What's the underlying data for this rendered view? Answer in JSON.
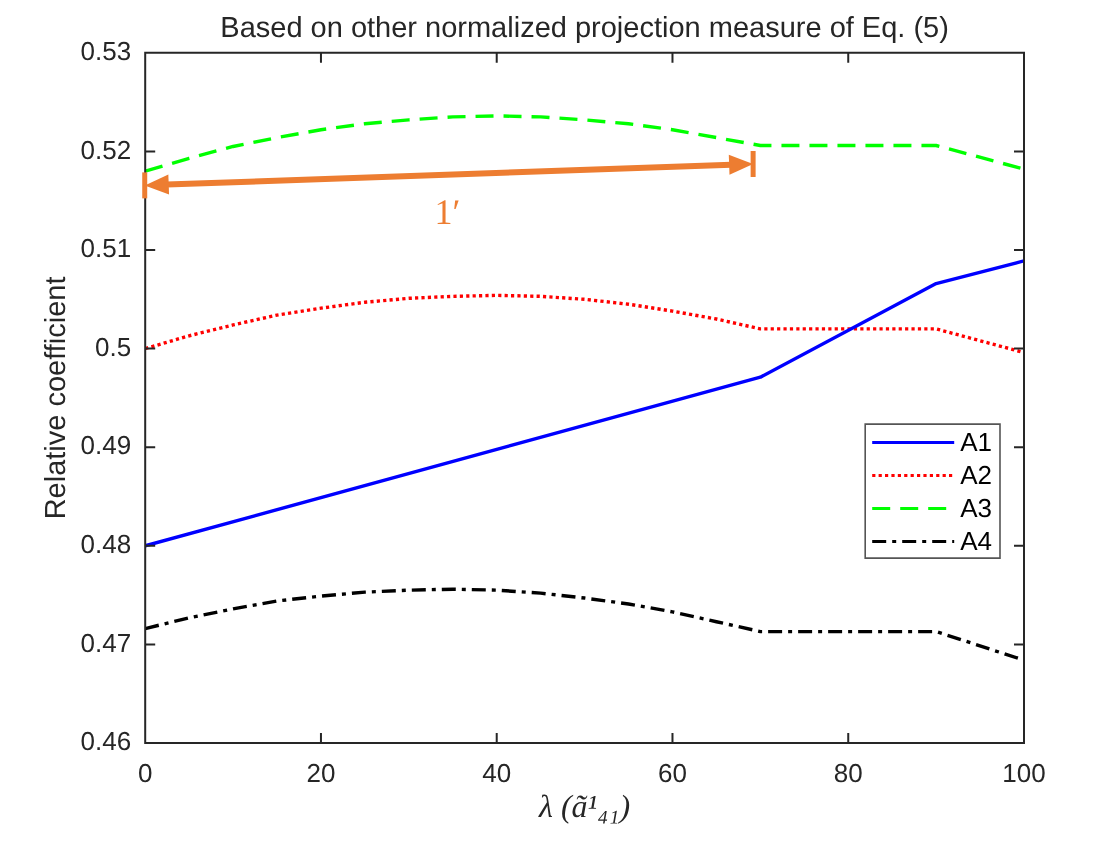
{
  "chart_data": {
    "type": "line",
    "title": "Based on other normalized projection measure of Eq. (5)",
    "xlabel": "λ (ã¹₄₁)",
    "ylabel": "Relative coefficient",
    "x": [
      0,
      5,
      10,
      15,
      20,
      25,
      30,
      35,
      40,
      45,
      50,
      55,
      60,
      65,
      70,
      90,
      100
    ],
    "xlim": [
      0,
      100
    ],
    "xticks": [
      0,
      20,
      40,
      60,
      80,
      100
    ],
    "ylim": [
      0.46,
      0.53
    ],
    "yticks": [
      0.46,
      0.47,
      0.48,
      0.49,
      0.5,
      0.51,
      0.52,
      0.53
    ],
    "grid": false,
    "legend": "right",
    "series": [
      {
        "name": "A1",
        "color": "#0000ff",
        "line_style": "solid",
        "x": [
          0,
          70,
          90,
          100
        ],
        "values": [
          0.48,
          0.4971,
          0.5066,
          0.5089
        ]
      },
      {
        "name": "A2",
        "color": "#ff0000",
        "line_style": "dotted",
        "values": [
          0.5,
          0.5013,
          0.5024,
          0.5034,
          0.5041,
          0.5047,
          0.5051,
          0.5053,
          0.5054,
          0.5053,
          0.505,
          0.5045,
          0.5038,
          0.503,
          0.502,
          0.502,
          0.4996
        ]
      },
      {
        "name": "A3",
        "color": "#00ff00",
        "line_style": "dashed",
        "values": [
          0.518,
          0.5193,
          0.5205,
          0.5214,
          0.5222,
          0.5228,
          0.5232,
          0.5235,
          0.5236,
          0.5235,
          0.5232,
          0.5228,
          0.5222,
          0.5214,
          0.5206,
          0.5206,
          0.5182
        ]
      },
      {
        "name": "A4",
        "color": "#000000",
        "line_style": "dashdot",
        "values": [
          0.4716,
          0.4727,
          0.4736,
          0.4744,
          0.4749,
          0.4753,
          0.4755,
          0.4756,
          0.4755,
          0.4752,
          0.4747,
          0.4741,
          0.4733,
          0.4723,
          0.4713,
          0.4713,
          0.4684
        ]
      }
    ],
    "annotations": [
      "1′"
    ]
  }
}
